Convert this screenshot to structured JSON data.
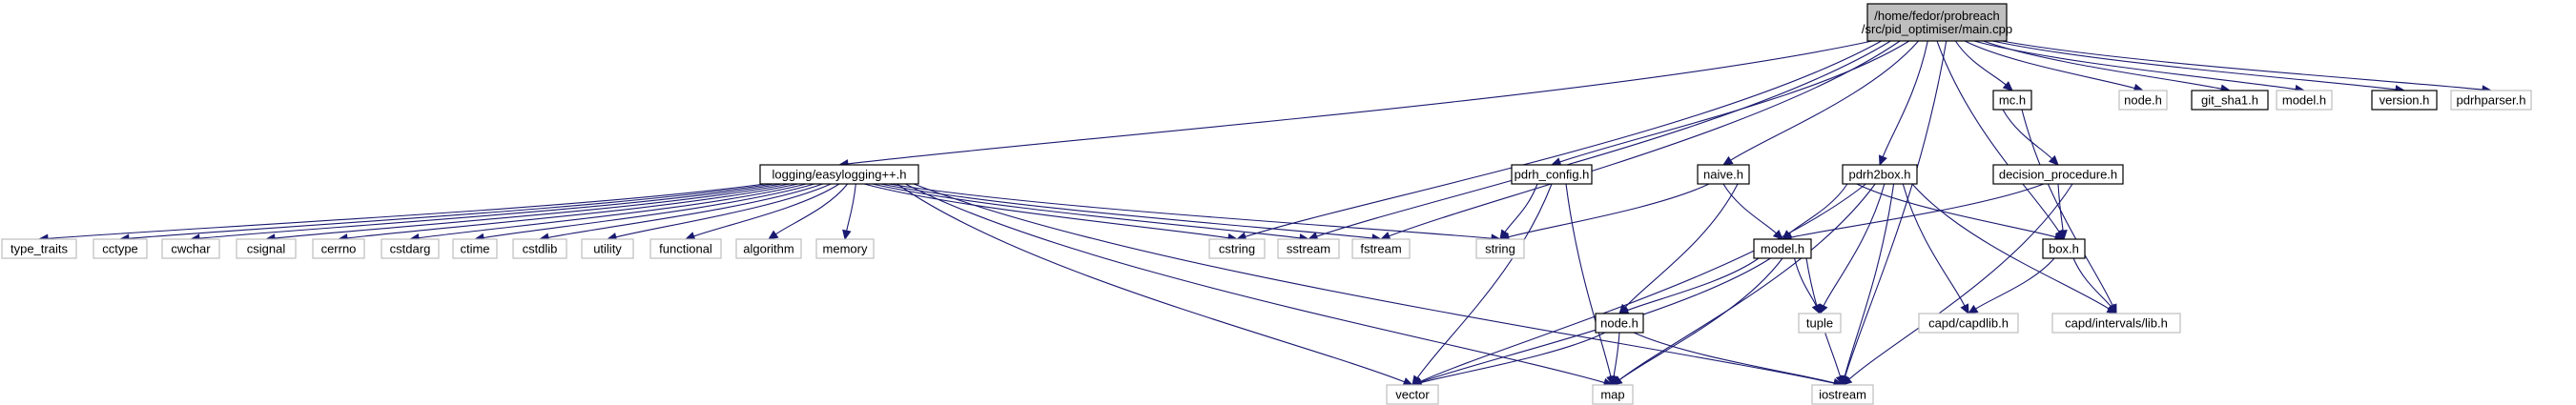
{
  "graph": {
    "title": "",
    "nodes": [
      {
        "id": "main",
        "lines": [
          "/home/fedor/probreach",
          "/src/pid_optimiser/main.cpp"
        ],
        "style": "root"
      },
      {
        "id": "easylogging",
        "lines": [
          "logging/easylogging++.h"
        ],
        "style": "documented"
      },
      {
        "id": "pdrh_config",
        "lines": [
          "pdrh_config.h"
        ],
        "style": "documented"
      },
      {
        "id": "naive",
        "lines": [
          "naive.h"
        ],
        "style": "documented"
      },
      {
        "id": "pdrh2box",
        "lines": [
          "pdrh2box.h"
        ],
        "style": "documented"
      },
      {
        "id": "mc",
        "lines": [
          "mc.h"
        ],
        "style": "documented"
      },
      {
        "id": "decision_procedure",
        "lines": [
          "decision_procedure.h"
        ],
        "style": "documented"
      },
      {
        "id": "git_sha1",
        "lines": [
          "git_sha1.h"
        ],
        "style": "documented"
      },
      {
        "id": "version",
        "lines": [
          "version.h"
        ],
        "style": "documented"
      },
      {
        "id": "model",
        "lines": [
          "model.h"
        ],
        "style": "documented"
      },
      {
        "id": "box",
        "lines": [
          "box.h"
        ],
        "style": "documented"
      },
      {
        "id": "node",
        "lines": [
          "node.h"
        ],
        "style": "documented"
      },
      {
        "id": "node_top",
        "lines": [
          "node.h"
        ],
        "style": "external"
      },
      {
        "id": "model_top",
        "lines": [
          "model.h"
        ],
        "style": "external"
      },
      {
        "id": "pdrhparser",
        "lines": [
          "pdrhparser.h"
        ],
        "style": "external"
      },
      {
        "id": "type_traits",
        "lines": [
          "type_traits"
        ],
        "style": "external"
      },
      {
        "id": "cctype",
        "lines": [
          "cctype"
        ],
        "style": "external"
      },
      {
        "id": "cwchar",
        "lines": [
          "cwchar"
        ],
        "style": "external"
      },
      {
        "id": "csignal",
        "lines": [
          "csignal"
        ],
        "style": "external"
      },
      {
        "id": "cerrno",
        "lines": [
          "cerrno"
        ],
        "style": "external"
      },
      {
        "id": "cstdarg",
        "lines": [
          "cstdarg"
        ],
        "style": "external"
      },
      {
        "id": "ctime",
        "lines": [
          "ctime"
        ],
        "style": "external"
      },
      {
        "id": "cstdlib",
        "lines": [
          "cstdlib"
        ],
        "style": "external"
      },
      {
        "id": "utility",
        "lines": [
          "utility"
        ],
        "style": "external"
      },
      {
        "id": "functional",
        "lines": [
          "functional"
        ],
        "style": "external"
      },
      {
        "id": "algorithm",
        "lines": [
          "algorithm"
        ],
        "style": "external"
      },
      {
        "id": "memory",
        "lines": [
          "memory"
        ],
        "style": "external"
      },
      {
        "id": "cstring",
        "lines": [
          "cstring"
        ],
        "style": "external"
      },
      {
        "id": "sstream",
        "lines": [
          "sstream"
        ],
        "style": "external"
      },
      {
        "id": "fstream",
        "lines": [
          "fstream"
        ],
        "style": "external"
      },
      {
        "id": "string",
        "lines": [
          "string"
        ],
        "style": "external"
      },
      {
        "id": "tuple",
        "lines": [
          "tuple"
        ],
        "style": "external"
      },
      {
        "id": "capdlib",
        "lines": [
          "capd/capdlib.h"
        ],
        "style": "external"
      },
      {
        "id": "intervals",
        "lines": [
          "capd/intervals/lib.h"
        ],
        "style": "external"
      },
      {
        "id": "vector",
        "lines": [
          "vector"
        ],
        "style": "external"
      },
      {
        "id": "map",
        "lines": [
          "map"
        ],
        "style": "external"
      },
      {
        "id": "iostream",
        "lines": [
          "iostream"
        ],
        "style": "external"
      }
    ],
    "edges": [
      [
        "main",
        "easylogging"
      ],
      [
        "main",
        "cstring"
      ],
      [
        "main",
        "sstream"
      ],
      [
        "main",
        "fstream"
      ],
      [
        "main",
        "pdrh_config"
      ],
      [
        "main",
        "naive"
      ],
      [
        "main",
        "pdrh2box"
      ],
      [
        "main",
        "box"
      ],
      [
        "main",
        "iostream"
      ],
      [
        "main",
        "mc"
      ],
      [
        "main",
        "node_top"
      ],
      [
        "main",
        "model_top"
      ],
      [
        "main",
        "git_sha1"
      ],
      [
        "main",
        "version"
      ],
      [
        "main",
        "pdrhparser"
      ],
      [
        "easylogging",
        "type_traits"
      ],
      [
        "easylogging",
        "cctype"
      ],
      [
        "easylogging",
        "cwchar"
      ],
      [
        "easylogging",
        "csignal"
      ],
      [
        "easylogging",
        "cerrno"
      ],
      [
        "easylogging",
        "cstdarg"
      ],
      [
        "easylogging",
        "ctime"
      ],
      [
        "easylogging",
        "cstdlib"
      ],
      [
        "easylogging",
        "utility"
      ],
      [
        "easylogging",
        "functional"
      ],
      [
        "easylogging",
        "algorithm"
      ],
      [
        "easylogging",
        "memory"
      ],
      [
        "easylogging",
        "cstring"
      ],
      [
        "easylogging",
        "sstream"
      ],
      [
        "easylogging",
        "fstream"
      ],
      [
        "easylogging",
        "string"
      ],
      [
        "easylogging",
        "vector"
      ],
      [
        "easylogging",
        "map"
      ],
      [
        "easylogging",
        "iostream"
      ],
      [
        "pdrh_config",
        "string"
      ],
      [
        "pdrh_config",
        "vector"
      ],
      [
        "pdrh_config",
        "map"
      ],
      [
        "naive",
        "string"
      ],
      [
        "naive",
        "model"
      ],
      [
        "naive",
        "node"
      ],
      [
        "pdrh2box",
        "model"
      ],
      [
        "pdrh2box",
        "box"
      ],
      [
        "pdrh2box",
        "vector"
      ],
      [
        "pdrh2box",
        "map"
      ],
      [
        "pdrh2box",
        "tuple"
      ],
      [
        "pdrh2box",
        "iostream"
      ],
      [
        "pdrh2box",
        "capdlib"
      ],
      [
        "pdrh2box",
        "intervals"
      ],
      [
        "mc",
        "decision_procedure"
      ],
      [
        "mc",
        "intervals"
      ],
      [
        "decision_procedure",
        "model"
      ],
      [
        "decision_procedure",
        "box"
      ],
      [
        "decision_procedure",
        "iostream"
      ],
      [
        "model",
        "node"
      ],
      [
        "model",
        "vector"
      ],
      [
        "model",
        "map"
      ],
      [
        "model",
        "tuple"
      ],
      [
        "model",
        "iostream"
      ],
      [
        "box",
        "capdlib"
      ],
      [
        "box",
        "intervals"
      ],
      [
        "node",
        "vector"
      ],
      [
        "node",
        "map"
      ],
      [
        "node",
        "iostream"
      ]
    ],
    "colors": {
      "edge": "#191970",
      "root_fill": "#bfbfbf",
      "root_border": "#000000",
      "documented_border": "#000000",
      "external_border": "#bfbfbf",
      "node_fill": "#ffffff",
      "text": "#000000"
    }
  }
}
